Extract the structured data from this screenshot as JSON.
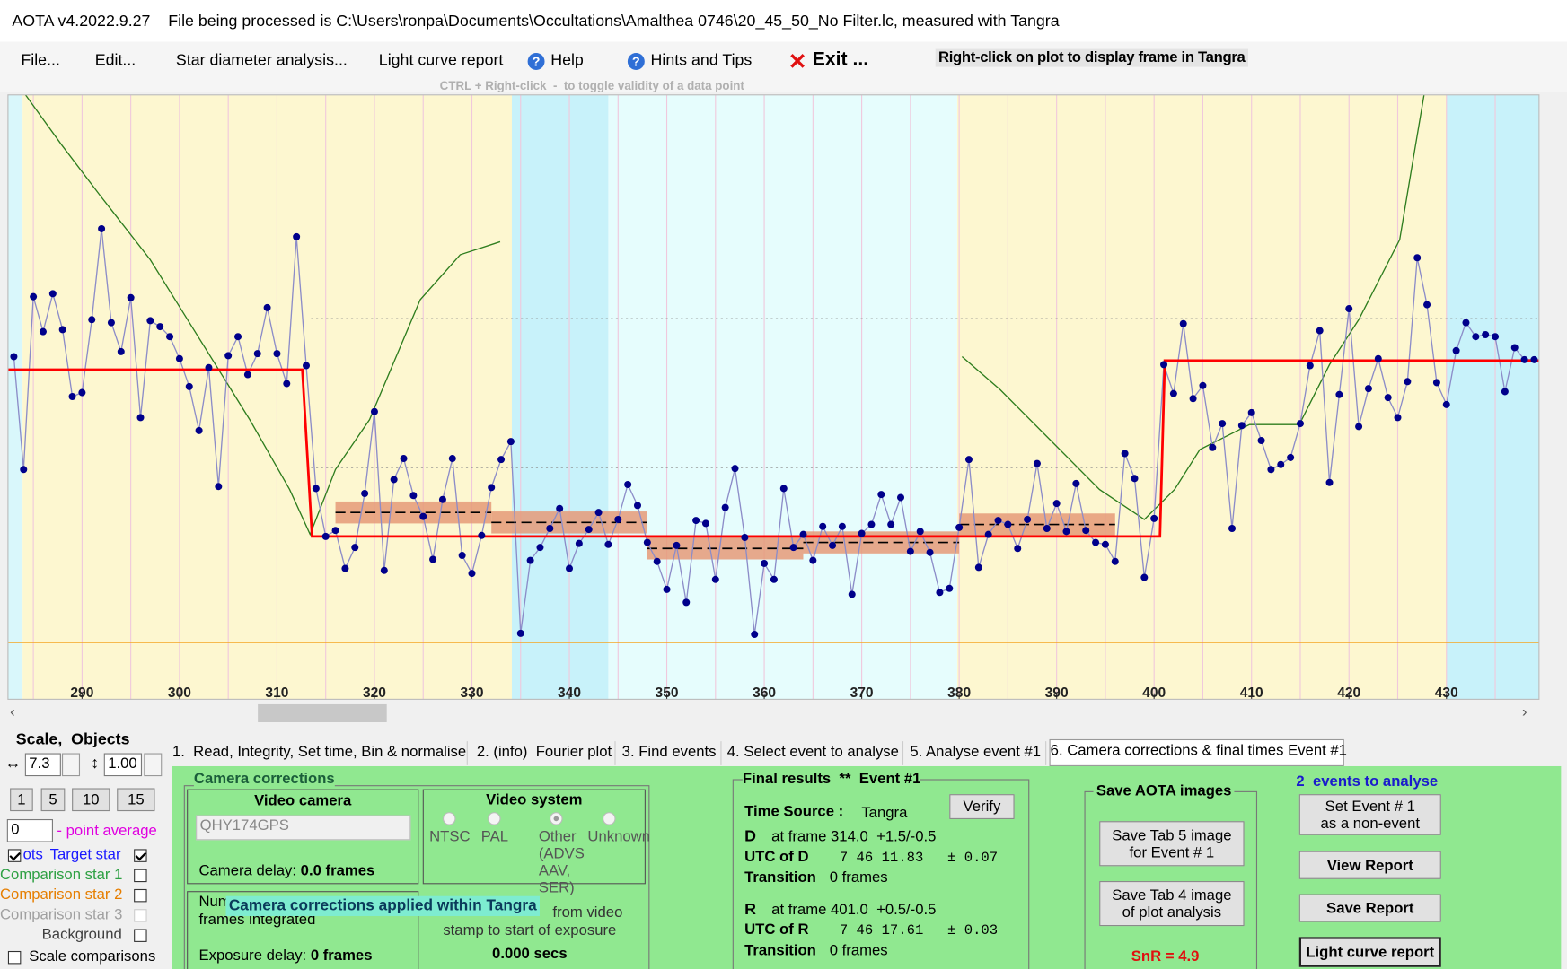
{
  "window": {
    "title": "AOTA v4.2022.9.27    File being processed is C:\\Users\\ronpa\\Documents\\Occultations\\Amalthea 0746\\20_45_50_No Filter.lc, measured with Tangra"
  },
  "menu": [
    "File...",
    "Edit...",
    "Star diameter analysis...",
    "Light curve report",
    "Help",
    "Hints and Tips",
    "Exit ..."
  ],
  "plot_hint": "Right-click on plot to display frame in Tangra",
  "plot_subhint": "CTRL + Right-click  -  to toggle validity of a data point",
  "chart_data": {
    "type": "line",
    "x": [
      283,
      284,
      285,
      286,
      287,
      288,
      289,
      290,
      291,
      292,
      293,
      294,
      295,
      296,
      297,
      298,
      299,
      300,
      301,
      302,
      303,
      304,
      305,
      306,
      307,
      308,
      309,
      310,
      311,
      312,
      313,
      314,
      315,
      316,
      317,
      318,
      319,
      320,
      321,
      322,
      323,
      324,
      325,
      326,
      327,
      328,
      329,
      330,
      331,
      332,
      333,
      334,
      335,
      336,
      337,
      338,
      339,
      340,
      341,
      342,
      343,
      344,
      345,
      346,
      347,
      348,
      349,
      350,
      351,
      352,
      353,
      354,
      355,
      356,
      357,
      358,
      359,
      360,
      361,
      362,
      363,
      364,
      365,
      366,
      367,
      368,
      369,
      370,
      371,
      372,
      373,
      374,
      375,
      376,
      377,
      378,
      379,
      380,
      381,
      382,
      383,
      384,
      385,
      386,
      387,
      388,
      389,
      390,
      391,
      392,
      393,
      394,
      395,
      396,
      397,
      398,
      399,
      400,
      401,
      402,
      403,
      404,
      405,
      406,
      407,
      408,
      409,
      410,
      411,
      412,
      413,
      414,
      415,
      416,
      417,
      418,
      419,
      420,
      421,
      422,
      423,
      424,
      425,
      426,
      427,
      428,
      429,
      430,
      431,
      432,
      433,
      434,
      435,
      436,
      437,
      438,
      439
    ],
    "values": [
      286,
      173,
      346,
      311,
      349,
      313,
      246,
      250,
      323,
      414,
      320,
      291,
      345,
      225,
      322,
      316,
      306,
      284,
      256,
      212,
      275,
      156,
      287,
      306,
      268,
      289,
      335,
      289,
      259,
      406,
      277,
      154,
      106,
      112,
      74,
      95,
      149,
      231,
      72,
      163,
      184,
      147,
      126,
      83,
      143,
      184,
      87,
      69,
      107,
      155,
      183,
      201,
      9,
      82,
      95,
      114,
      134,
      74,
      99,
      113,
      130,
      98,
      123,
      158,
      137,
      100,
      81,
      53,
      97,
      40,
      122,
      119,
      63,
      135,
      174,
      105,
      8,
      79,
      63,
      154,
      95,
      108,
      82,
      116,
      97,
      116,
      48,
      109,
      118,
      148,
      118,
      145,
      91,
      111,
      90,
      50,
      54,
      115,
      183,
      75,
      108,
      122,
      118,
      94,
      123,
      179,
      114,
      139,
      111,
      159,
      112,
      100,
      98,
      81,
      189,
      164,
      65,
      124,
      278,
      249,
      319,
      244,
      257,
      195,
      219,
      114,
      217,
      230,
      202,
      173,
      178,
      185,
      219,
      277,
      312,
      160,
      248,
      334,
      216,
      254,
      284,
      245,
      225,
      261,
      385,
      338,
      260,
      238,
      292,
      320,
      306,
      308,
      306,
      251,
      295,
      283,
      283
    ],
    "marker_color": "#00008b",
    "line_color": "#8c8cc8",
    "xlim": [
      282.4,
      439.5
    ],
    "ylim": [
      -57,
      548
    ],
    "xticks": [
      290,
      300,
      310,
      320,
      330,
      340,
      350,
      360,
      370,
      380,
      390,
      400,
      410,
      420,
      430
    ],
    "xgrid": [
      285,
      290,
      295,
      300,
      305,
      310,
      315,
      320,
      325,
      330,
      335,
      340,
      345,
      350,
      355,
      360,
      365,
      370,
      375,
      380,
      385,
      390,
      395,
      400,
      405,
      410,
      415,
      420,
      425,
      430,
      435
    ],
    "grid_color": "#f0c8dc",
    "regions": [
      {
        "x": [
          282.4,
          283.9
        ],
        "color": "#d9f7fb"
      },
      {
        "x": [
          283.9,
          334.1
        ],
        "color": "#fdf7d0"
      },
      {
        "x": [
          334.1,
          344.0
        ],
        "color": "#c8f2fa"
      },
      {
        "x": [
          344.0,
          379.8
        ],
        "color": "#e6fdfd"
      },
      {
        "x": [
          379.8,
          430.0
        ],
        "color": "#fdf7d0"
      },
      {
        "x": [
          430.0,
          439.5
        ],
        "color": "#c8f2fa"
      }
    ],
    "model": {
      "x": [
        282.4,
        312.6,
        313.6,
        400.6,
        401.1,
        439.5
      ],
      "values": [
        273,
        273,
        106,
        106,
        282,
        282
      ],
      "color": "#ff0000"
    },
    "smoothed": {
      "x": [
        284.2,
        287.9,
        291.8,
        297.0,
        302.1,
        307.2,
        311.3,
        313.4,
        316.0,
        319.5,
        324.7,
        328.8,
        332.9,
        356,
        380.3,
        384.2,
        389.3,
        394.4,
        399.0,
        402.1,
        404.7,
        409.8,
        414.9,
        418.0,
        421.0,
        425.2,
        426.4,
        427.7
      ],
      "values": [
        548,
        498,
        448,
        383,
        303,
        223,
        153,
        108,
        173,
        223,
        343,
        388,
        401,
        null,
        286,
        253,
        203,
        153,
        123,
        153,
        193,
        218,
        218,
        278,
        323,
        403,
        473,
        548
      ],
      "color": "#2e7d1e"
    },
    "bands": [
      {
        "x": [
          316,
          332
        ],
        "value": 130
      },
      {
        "x": [
          332,
          348
        ],
        "value": 120
      },
      {
        "x": [
          348,
          364
        ],
        "value": 94
      },
      {
        "x": [
          364,
          380
        ],
        "value": 100
      },
      {
        "x": [
          380,
          396
        ],
        "value": 118
      }
    ],
    "band_color": "#e59a78",
    "reference_lines": [
      {
        "x": [
          313.5,
          439.5
        ],
        "value": 324
      },
      {
        "x": [
          313.5,
          400.5
        ],
        "value": 175
      }
    ],
    "zero_line_color": "#f5a623"
  },
  "scale_panel": {
    "title": "Scale,  Objects",
    "x_scale": "7.3",
    "y_scale": "1.00",
    "step_buttons": [
      "1",
      "5",
      "10",
      "15"
    ],
    "point_average": "0",
    "point_average_label": "- point average",
    "plots_label": "ots",
    "plots_checked": true,
    "objects": [
      {
        "label": "Target star",
        "color": "#1a1aff",
        "checked": true,
        "enabled": true
      },
      {
        "label": "Comparison star 1",
        "color": "#2ea043",
        "checked": false,
        "enabled": true
      },
      {
        "label": "Comparison star 2",
        "color": "#e67e00",
        "checked": false,
        "enabled": true
      },
      {
        "label": "Comparison star 3",
        "color": "#a0a0a0",
        "checked": false,
        "enabled": false
      },
      {
        "label": "Background",
        "color": "#404040",
        "checked": false,
        "enabled": true
      }
    ],
    "scale_comparisons": "Scale comparisons",
    "scale_comparisons_checked": false
  },
  "tabs": {
    "items": [
      "1.  Read, Integrity, Set time, Bin & normalise",
      "2. (info)  Fourier plot",
      "3. Find events",
      "4. Select event to analyse",
      "5. Analyse event #1",
      "6. Camera corrections & final times Event #1"
    ],
    "active": 5
  },
  "camera_corrections": {
    "title": "Camera corrections",
    "video_camera": "Video camera",
    "camera": "QHY174GPS",
    "camera_delay_label": "Camera delay: ",
    "camera_delay": "0.0 frames",
    "video_system": "Video system",
    "systems": [
      "NTSC",
      "PAL",
      "Other\n(ADVS\nAAV, SER)",
      "Unknown"
    ],
    "system_selected": 2,
    "num_label": "Num",
    "frames_integrated": "frames integrated",
    "tooltip": "Camera corrections applied within Tangra",
    "from_video": "from video",
    "stamp_text": "stamp to start of exposure",
    "offset": "0.000 secs",
    "exposure_delay_label": "Exposure delay: ",
    "exposure_delay": "0 frames"
  },
  "final_results": {
    "title": "Final results  **  Event #1",
    "time_source_label": "Time Source :",
    "time_source": "Tangra",
    "verify": "Verify",
    "d": {
      "label": "D",
      "frame": "at frame 314.0  +1.5/-0.5",
      "utc_label": "UTC of D",
      "utc": "7 46 11.83",
      "error": "± 0.07",
      "transition_label": "Transition",
      "transition": "0 frames"
    },
    "r": {
      "label": "R",
      "frame": "at frame 401.0  +0.5/-0.5",
      "utc_label": "UTC of R",
      "utc": "7 46 17.61",
      "error": "± 0.03",
      "transition_label": "Transition",
      "transition": "0 frames"
    }
  },
  "save_images": {
    "title": "Save AOTA images",
    "tab5": "Save Tab 5 image\nfor Event # 1",
    "tab4": "Save Tab 4 image\nof plot analysis",
    "snr": "SnR = 4.9"
  },
  "actions": {
    "events": "2  events to analyse",
    "non_event": "Set Event # 1\nas a non-event",
    "view": "View Report",
    "save": "Save Report",
    "light_curve": "Light curve report"
  }
}
